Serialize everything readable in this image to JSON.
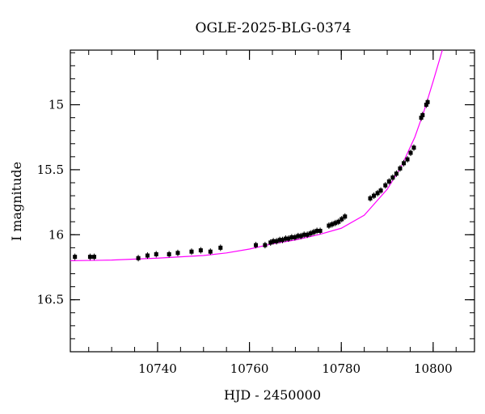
{
  "chart_data": {
    "type": "scatter",
    "title": "OGLE-2025-BLG-0374",
    "xlabel": "HJD - 2450000",
    "ylabel": "I magnitude",
    "xlim": [
      10721,
      10809
    ],
    "ylim": [
      16.9,
      14.58
    ],
    "y_inverted": true,
    "grid": false,
    "x_ticks": [
      10740,
      10760,
      10780,
      10800
    ],
    "x_tick_labels": [
      "10740",
      "10760",
      "10780",
      "10800"
    ],
    "y_ticks": [
      15,
      15.5,
      16,
      16.5
    ],
    "y_tick_labels": [
      "15",
      "15.5",
      "16",
      "16.5"
    ],
    "model_color": "#ff00ff",
    "point_color": "#000000",
    "model_curve": {
      "x": [
        10721,
        10730,
        10740,
        10750,
        10755,
        10760,
        10765,
        10770,
        10775,
        10780,
        10785,
        10790,
        10793,
        10796,
        10798,
        10800,
        10802
      ],
      "y": [
        16.2,
        16.195,
        16.18,
        16.16,
        16.14,
        16.11,
        16.07,
        16.04,
        16.0,
        15.95,
        15.85,
        15.65,
        15.48,
        15.25,
        15.05,
        14.82,
        14.58
      ]
    },
    "data_points": {
      "x": [
        10722.0,
        10725.3,
        10726.2,
        10735.8,
        10737.8,
        10739.7,
        10742.5,
        10744.4,
        10747.4,
        10749.4,
        10751.5,
        10753.7,
        10761.4,
        10763.4,
        10764.6,
        10765.2,
        10765.9,
        10766.6,
        10767.2,
        10767.9,
        10768.5,
        10769.2,
        10769.9,
        10770.6,
        10771.2,
        10771.9,
        10772.6,
        10773.3,
        10774.0,
        10774.7,
        10775.4,
        10777.3,
        10778.0,
        10778.7,
        10779.4,
        10780.1,
        10780.8,
        10786.3,
        10787.1,
        10787.9,
        10788.6,
        10789.6,
        10790.4,
        10791.2,
        10792.0,
        10792.8,
        10793.6,
        10794.4,
        10795.1,
        10795.8,
        10797.4,
        10797.7,
        10798.5,
        10798.8
      ],
      "y": [
        16.17,
        16.17,
        16.17,
        16.18,
        16.16,
        16.15,
        16.15,
        16.14,
        16.13,
        16.12,
        16.13,
        16.1,
        16.08,
        16.08,
        16.06,
        16.05,
        16.05,
        16.04,
        16.04,
        16.03,
        16.03,
        16.02,
        16.02,
        16.01,
        16.01,
        16.0,
        16.0,
        15.99,
        15.98,
        15.97,
        15.97,
        15.93,
        15.92,
        15.91,
        15.9,
        15.88,
        15.86,
        15.72,
        15.7,
        15.68,
        15.66,
        15.62,
        15.59,
        15.56,
        15.53,
        15.49,
        15.45,
        15.42,
        15.37,
        15.33,
        15.1,
        15.08,
        15.0,
        14.98
      ]
    }
  }
}
